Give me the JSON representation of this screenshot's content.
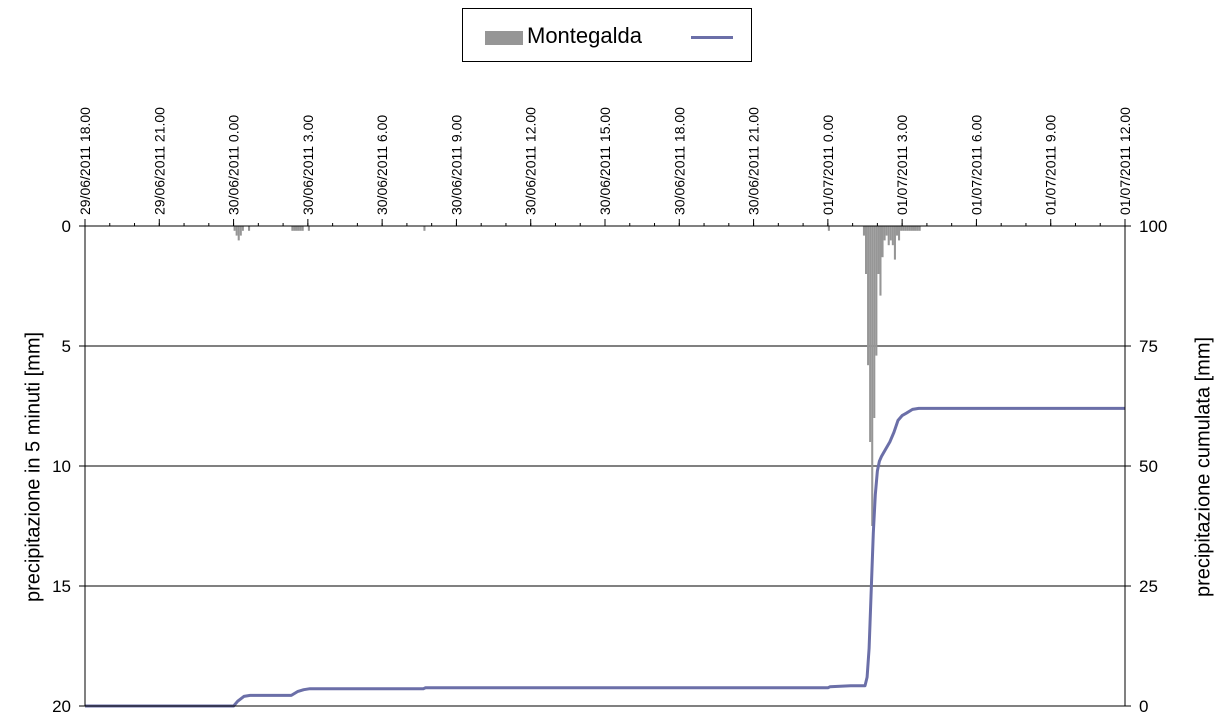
{
  "chart_data": {
    "type": "bar",
    "legend": {
      "placement": "top-center",
      "entries": [
        "Montegalda",
        ""
      ]
    },
    "colors": {
      "bars": "#969696",
      "line": "#6b6fa8",
      "grid": "#000000"
    },
    "grid": true,
    "x_axis": {
      "position": "top",
      "range": [
        "29/06/2011 18.00",
        "01/07/2011 12.00"
      ],
      "tick_labels": [
        "29/06/2011 18.00",
        "29/06/2011 21.00",
        "30/06/2011 0.00",
        "30/06/2011 3.00",
        "30/06/2011 6.00",
        "30/06/2011 9.00",
        "30/06/2011 12.00",
        "30/06/2011 15.00",
        "30/06/2011 18.00",
        "30/06/2011 21.00",
        "01/07/2011 0.00",
        "01/07/2011 3.00",
        "01/07/2011 6.00",
        "01/07/2011 9.00",
        "01/07/2011 12.00"
      ]
    },
    "y_left": {
      "label": "precipitazione in 5 minuti [mm]",
      "range": [
        0,
        20
      ],
      "inverted": true,
      "ticks": [
        "0",
        "5",
        "10",
        "15",
        "20"
      ]
    },
    "y_right": {
      "label": "precipitazione cumulata [mm]",
      "range": [
        0,
        100
      ],
      "ticks": [
        "100",
        "75",
        "50",
        "25",
        "0"
      ]
    },
    "bar_series": {
      "name": "Montegalda",
      "points": [
        [
          "30/06/2011 0.05",
          0.2
        ],
        [
          "30/06/2011 0.10",
          0.4
        ],
        [
          "30/06/2011 0.15",
          0.6
        ],
        [
          "30/06/2011 0.20",
          0.4
        ],
        [
          "30/06/2011 0.25",
          0.2
        ],
        [
          "30/06/2011 0.40",
          0.2
        ],
        [
          "30/06/2011 2.25",
          0.2
        ],
        [
          "30/06/2011 2.30",
          0.2
        ],
        [
          "30/06/2011 2.35",
          0.2
        ],
        [
          "30/06/2011 2.40",
          0.2
        ],
        [
          "30/06/2011 2.45",
          0.2
        ],
        [
          "30/06/2011 2.50",
          0.2
        ],
        [
          "30/06/2011 3.05",
          0.2
        ],
        [
          "30/06/2011 7.45",
          0.2
        ],
        [
          "01/07/2011 0.05",
          0.2
        ],
        [
          "01/07/2011 1.30",
          0.4
        ],
        [
          "01/07/2011 1.35",
          2.0
        ],
        [
          "01/07/2011 1.40",
          5.8
        ],
        [
          "01/07/2011 1.45",
          9.0
        ],
        [
          "01/07/2011 1.50",
          12.5
        ],
        [
          "01/07/2011 1.55",
          8.0
        ],
        [
          "01/07/2011 2.00",
          5.4
        ],
        [
          "01/07/2011 2.05",
          2.0
        ],
        [
          "01/07/2011 2.10",
          2.9
        ],
        [
          "01/07/2011 2.15",
          1.3
        ],
        [
          "01/07/2011 2.20",
          0.6
        ],
        [
          "01/07/2011 2.25",
          0.4
        ],
        [
          "01/07/2011 2.30",
          0.8
        ],
        [
          "01/07/2011 2.35",
          0.6
        ],
        [
          "01/07/2011 2.40",
          0.8
        ],
        [
          "01/07/2011 2.45",
          1.4
        ],
        [
          "01/07/2011 2.50",
          0.4
        ],
        [
          "01/07/2011 2.55",
          0.6
        ],
        [
          "01/07/2011 3.00",
          0.2
        ],
        [
          "01/07/2011 3.05",
          0.2
        ],
        [
          "01/07/2011 3.10",
          0.2
        ],
        [
          "01/07/2011 3.15",
          0.2
        ],
        [
          "01/07/2011 3.20",
          0.2
        ],
        [
          "01/07/2011 3.25",
          0.2
        ],
        [
          "01/07/2011 3.30",
          0.2
        ],
        [
          "01/07/2011 3.35",
          0.2
        ],
        [
          "01/07/2011 3.40",
          0.2
        ],
        [
          "01/07/2011 3.45",
          0.2
        ]
      ]
    },
    "line_series": {
      "name": "",
      "points": [
        [
          "29/06/2011 18.00",
          0
        ],
        [
          "30/06/2011 0.00",
          0
        ],
        [
          "30/06/2011 0.10",
          1.0
        ],
        [
          "30/06/2011 0.25",
          2.0
        ],
        [
          "30/06/2011 0.40",
          2.2
        ],
        [
          "30/06/2011 2.20",
          2.2
        ],
        [
          "30/06/2011 2.35",
          3.0
        ],
        [
          "30/06/2011 2.50",
          3.4
        ],
        [
          "30/06/2011 3.05",
          3.6
        ],
        [
          "30/06/2011 7.40",
          3.6
        ],
        [
          "30/06/2011 7.45",
          3.8
        ],
        [
          "01/07/2011 0.00",
          3.8
        ],
        [
          "01/07/2011 0.05",
          4.0
        ],
        [
          "01/07/2011 0.55",
          4.2
        ],
        [
          "01/07/2011 1.30",
          4.2
        ],
        [
          "01/07/2011 1.35",
          6.0
        ],
        [
          "01/07/2011 1.40",
          12.0
        ],
        [
          "01/07/2011 1.45",
          24.0
        ],
        [
          "01/07/2011 1.50",
          36.0
        ],
        [
          "01/07/2011 1.55",
          44.0
        ],
        [
          "01/07/2011 2.00",
          49.0
        ],
        [
          "01/07/2011 2.05",
          51.0
        ],
        [
          "01/07/2011 2.10",
          52.0
        ],
        [
          "01/07/2011 2.20",
          53.5
        ],
        [
          "01/07/2011 2.30",
          55.0
        ],
        [
          "01/07/2011 2.40",
          57.0
        ],
        [
          "01/07/2011 2.50",
          59.5
        ],
        [
          "01/07/2011 3.00",
          60.5
        ],
        [
          "01/07/2011 3.10",
          61.0
        ],
        [
          "01/07/2011 3.25",
          61.8
        ],
        [
          "01/07/2011 3.40",
          62.0
        ],
        [
          "01/07/2011 12.00",
          62.0
        ]
      ]
    }
  }
}
